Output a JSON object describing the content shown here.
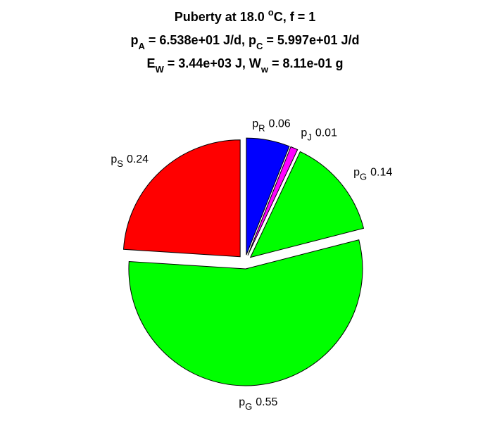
{
  "chart_data": {
    "type": "pie",
    "title": [
      [
        "Puberty at 18.0 ",
        "o",
        "C, f = 1"
      ],
      [
        "p",
        "A",
        " = 6.538e+01 J/d,  p",
        "C",
        " = 5.997e+01 J/d"
      ],
      [
        "E",
        "W",
        " = 3.44e+03 J, W",
        "w",
        " = 8.11e-01 g"
      ]
    ],
    "categories": [
      [
        "p",
        "R"
      ],
      [
        "p",
        "J"
      ],
      [
        "p",
        "G"
      ],
      [
        "p",
        "G"
      ],
      [
        "p",
        "S"
      ]
    ],
    "values": [
      0.06,
      0.01,
      0.14,
      0.55,
      0.24
    ],
    "colors": [
      "#0000ff",
      "#ff00ff",
      "#00ff00",
      "#00ff00",
      "#ff0000"
    ]
  }
}
